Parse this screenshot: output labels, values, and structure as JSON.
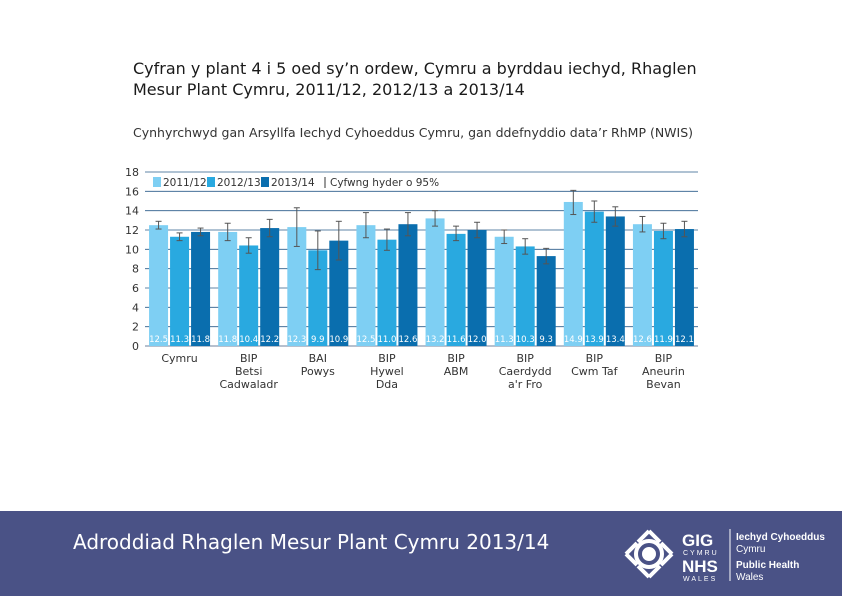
{
  "page": {
    "title": "Cyfran y plant 4 i 5 oed sy’n ordew, Cymru a byrddau iechyd, Rhaglen Mesur Plant Cymru, 2011/12, 2012/13 a 2013/14",
    "subtitle": "Cynhyrchwyd gan Arsyllfa Iechyd Cyhoeddus Cymru, gan ddefnyddio data’r RhMP (NWIS)"
  },
  "footer": {
    "report_title": "Adroddiad Rhaglen Mesur Plant Cymru 2013/14",
    "logo": {
      "gig": "GIG",
      "cymru": "CYMRU",
      "nhs": "NHS",
      "wales": "WALES",
      "org_line1": "Iechyd Cyhoeddus",
      "org_line2": "Cymru",
      "org_line3": "Public Health",
      "org_line4": "Wales"
    }
  },
  "chart_data": {
    "type": "bar",
    "ylim": [
      0,
      18
    ],
    "yticks": [
      0,
      2,
      4,
      6,
      8,
      10,
      12,
      14,
      16,
      18
    ],
    "legend_placement": "top-left",
    "ci_label": "Cyfwng hyder o 95%",
    "categories": [
      [
        "Cymru"
      ],
      [
        "BIP",
        "Betsi",
        "Cadwaladr"
      ],
      [
        "BAI",
        "Powys"
      ],
      [
        "BIP",
        "Hywel",
        "Dda"
      ],
      [
        "BIP",
        "ABM"
      ],
      [
        "BIP",
        "Caerdydd",
        "a'r Fro"
      ],
      [
        "BIP",
        "Cwm Taf"
      ],
      [
        "BIP",
        "Aneurin",
        "Bevan"
      ]
    ],
    "series": [
      {
        "name": "2011/12",
        "color": "#7ecff3",
        "values": [
          12.5,
          11.8,
          12.3,
          12.5,
          13.2,
          11.3,
          14.9,
          12.6
        ],
        "labels": [
          "12.5",
          "11.8",
          "12.3",
          "12.5",
          "13.2",
          "11.3",
          "14.9",
          "12.6"
        ],
        "ci_low": [
          12.1,
          10.9,
          10.3,
          11.2,
          12.4,
          10.6,
          13.6,
          11.8
        ],
        "ci_high": [
          12.9,
          12.7,
          14.3,
          13.8,
          14.0,
          12.0,
          16.1,
          13.4
        ]
      },
      {
        "name": "2012/13",
        "color": "#29a9e0",
        "values": [
          11.3,
          10.4,
          9.9,
          11.0,
          11.6,
          10.3,
          13.9,
          11.9
        ],
        "labels": [
          "11.3",
          "10.4",
          "9.9",
          "11.0",
          "11.6",
          "10.3",
          "13.9",
          "11.9"
        ],
        "ci_low": [
          10.9,
          9.6,
          7.9,
          9.9,
          10.9,
          9.5,
          12.8,
          11.1
        ],
        "ci_high": [
          11.7,
          11.2,
          11.9,
          12.1,
          12.4,
          11.1,
          15.0,
          12.7
        ]
      },
      {
        "name": "2013/14",
        "color": "#0a6eae",
        "values": [
          11.8,
          12.2,
          10.9,
          12.6,
          12.0,
          9.3,
          13.4,
          12.1
        ],
        "labels": [
          "11.8",
          "12.2",
          "10.9",
          "12.6",
          "12.0",
          "9.3",
          "13.4",
          "12.1"
        ],
        "ci_low": [
          11.4,
          11.3,
          8.9,
          11.4,
          11.2,
          8.5,
          12.4,
          11.3
        ],
        "ci_high": [
          12.2,
          13.1,
          12.9,
          13.8,
          12.8,
          10.1,
          14.4,
          12.9
        ]
      }
    ]
  }
}
